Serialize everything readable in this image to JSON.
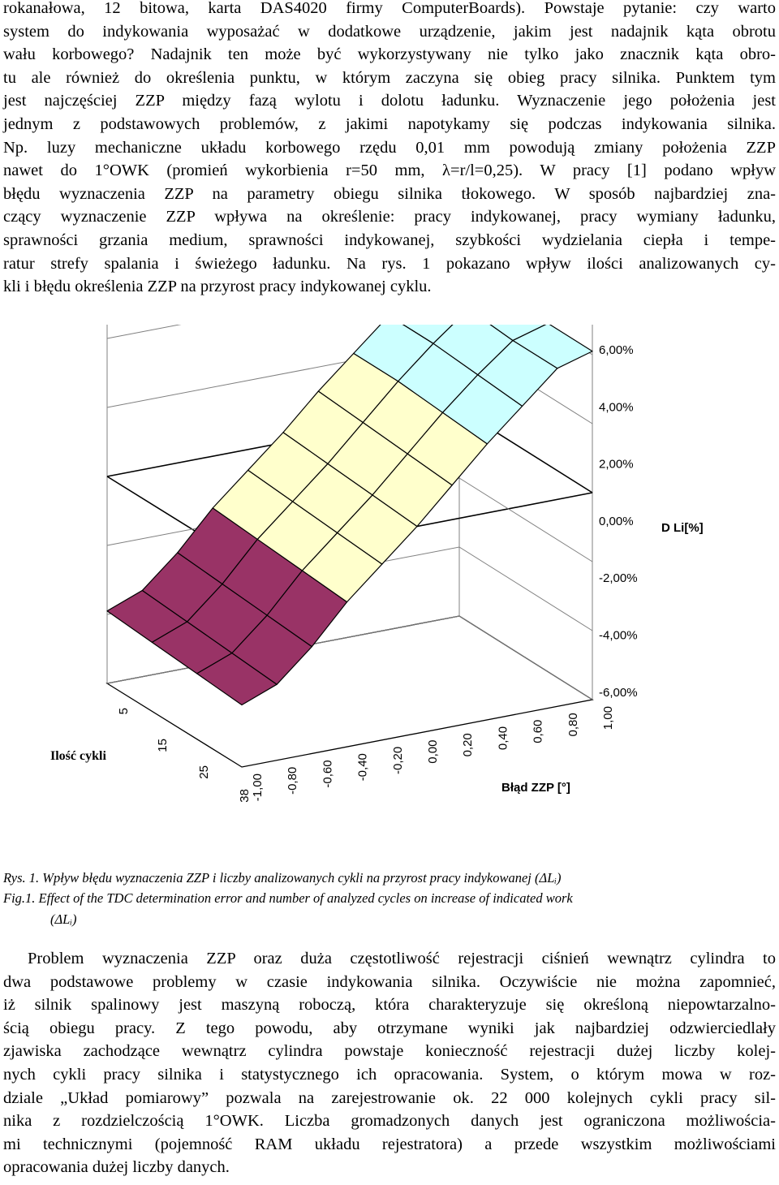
{
  "paragraph1": {
    "lines": [
      "rokanałowa, 12 bitowa, karta DAS4020 firmy ComputerBoards). Powstaje pytanie: czy warto",
      "system do indykowania wyposażać w dodatkowe urządzenie, jakim jest nadajnik kąta obrotu",
      "wału korbowego? Nadajnik ten może być wykorzystywany nie tylko jako znacznik kąta obro-",
      "tu ale również do określenia punktu, w którym zaczyna się obieg pracy silnika. Punktem tym",
      "jest najczęściej ZZP między fazą wylotu i dolotu ładunku. Wyznaczenie jego położenia jest",
      "jednym z podstawowych problemów, z jakimi napotykamy się podczas indykowania silnika.",
      "Np. luzy mechaniczne układu korbowego rzędu 0,01 mm powodują zmiany położenia ZZP",
      "nawet do 1°OWK (promień wykorbienia r=50 mm, λ=r/l=0,25). W pracy [1] podano wpływ",
      "błędu wyznaczenia ZZP na parametry obiegu silnika tłokowego. W sposób najbardziej zna-",
      "czący wyznaczenie ZZP wpływa na określenie: pracy indykowanej, pracy wymiany ładunku,",
      "sprawności grzania medium, sprawności indykowanej, szybkości wydzielania ciepła i tempe-",
      "ratur strefy spalania i świeżego ładunku. Na rys. 1 pokazano wpływ ilości analizowanych cy-",
      "kli i błędu określenia ZZP na przyrost pracy indykowanej cyklu."
    ]
  },
  "caption": {
    "pl": "Rys. 1. Wpływ błędu wyznaczenia ZZP i liczby analizowanych cykli na przyrost pracy indykowanej (ΔLᵢ)",
    "en_line1": "Fig.1. Effect of the TDC determination error and number of analyzed cycles on increase of indicated work",
    "en_line2": "(ΔLᵢ)"
  },
  "paragraph2": {
    "lines": [
      "Problem wyznaczenia ZZP oraz duża częstotliwość rejestracji ciśnień wewnątrz cylindra to",
      "dwa podstawowe problemy w czasie indykowania silnika. Oczywiście nie można zapomnieć,",
      "iż silnik spalinowy jest maszyną roboczą, która charakteryzuje się określoną niepowtarzalno-",
      "ścią obiegu pracy. Z tego powodu, aby otrzymane wyniki jak najbardziej odzwierciedlały",
      "zjawiska zachodzące wewnątrz cylindra powstaje konieczność rejestracji dużej liczby kolej-",
      "nych cykli pracy silnika i statystycznego ich opracowania. System, o którym mowa w roz-",
      "dziale „Układ pomiarowy” pozwala na zarejestrowanie ok. 22 000 kolejnych cykli pracy sil-",
      "nika z rozdzielczością 1°OWK. Liczba gromadzonych danych jest ograniczona możliwościa-",
      "mi technicznymi (pojemność RAM układu rejestratora) a przede wszystkim możliwościami",
      "opracowania dużej liczby danych."
    ]
  },
  "chart_data": {
    "type": "surface3d",
    "z_axis_label": "D Li[%]",
    "z_ticks": [
      "6,00%",
      "4,00%",
      "2,00%",
      "0,00%",
      "-2,00%",
      "-4,00%",
      "-6,00%"
    ],
    "z_range": [
      -6,
      6
    ],
    "x_axis_label": "Błąd ZZP [°]",
    "x_ticks": [
      "-1,00",
      "-0,80",
      "-0,60",
      "-0,40",
      "-0,20",
      "0,00",
      "0,20",
      "0,40",
      "0,60",
      "0,80",
      "1,00"
    ],
    "y_axis_label": "Ilość cykli",
    "y_ticks": [
      "5",
      "15",
      "25",
      "38"
    ],
    "x": [
      -1.0,
      -0.8,
      -0.6,
      -0.4,
      -0.2,
      0.0,
      0.2,
      0.4,
      0.6,
      0.8,
      1.0
    ],
    "series": [
      {
        "name": "5",
        "values": [
          -3.9,
          -3.5,
          -2.6,
          -1.5,
          -0.6,
          0.3,
          1.3,
          2.2,
          3.1,
          3.9,
          4.2
        ]
      },
      {
        "name": "15",
        "values": [
          -4.0,
          -3.6,
          -2.7,
          -1.6,
          -0.7,
          0.2,
          1.2,
          2.2,
          3.1,
          3.9,
          4.2
        ]
      },
      {
        "name": "25",
        "values": [
          -4.1,
          -3.7,
          -2.8,
          -1.7,
          -0.8,
          0.1,
          1.1,
          2.1,
          3.0,
          3.8,
          4.1
        ]
      },
      {
        "name": "38",
        "values": [
          -4.2,
          -3.8,
          -2.9,
          -1.8,
          -0.9,
          0.0,
          1.0,
          2.0,
          2.9,
          3.8,
          4.1
        ]
      }
    ],
    "color_bands": [
      {
        "range": [
          -6,
          -4
        ],
        "color": "#ffffff"
      },
      {
        "range": [
          -4,
          -2
        ],
        "color": "#993366"
      },
      {
        "range": [
          -2,
          0
        ],
        "color": "#ffffcc"
      },
      {
        "range": [
          0,
          2
        ],
        "color": "#ffffcc"
      },
      {
        "range": [
          2,
          4
        ],
        "color": "#ccffff"
      },
      {
        "range": [
          4,
          6
        ],
        "color": "#660066"
      }
    ]
  }
}
